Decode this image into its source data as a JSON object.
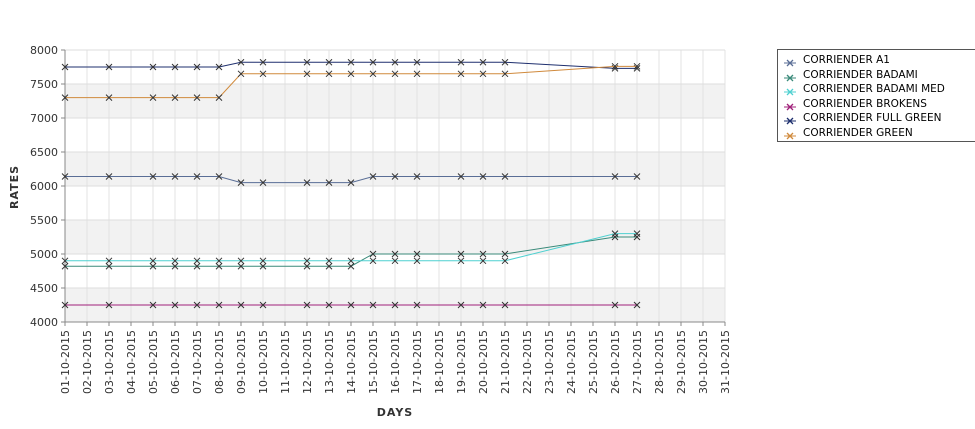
{
  "chart_data": {
    "type": "line",
    "xlabel": "DAYS",
    "ylabel": "RATES",
    "ylim": [
      4000,
      8000
    ],
    "y_ticks": [
      "4000",
      "4500",
      "5000",
      "5500",
      "6000",
      "6500",
      "7000",
      "7500",
      "8000"
    ],
    "x_ticks": [
      "01-10-2015",
      "02-10-2015",
      "03-10-2015",
      "04-10-2015",
      "05-10-2015",
      "06-10-2015",
      "07-10-2015",
      "08-10-2015",
      "09-10-2015",
      "10-10-2015",
      "11-10-2015",
      "12-10-2015",
      "13-10-2015",
      "14-10-2015",
      "15-10-2015",
      "16-10-2015",
      "17-10-2015",
      "18-10-2015",
      "19-10-2015",
      "20-10-2015",
      "21-10-2015",
      "22-10-2015",
      "23-10-2015",
      "24-10-2015",
      "25-10-2015",
      "26-10-2015",
      "27-10-2015",
      "28-10-2015",
      "29-10-2015",
      "30-10-2015",
      "31-10-2015"
    ],
    "dates": [
      "01-10-2015",
      "03-10-2015",
      "05-10-2015",
      "06-10-2015",
      "07-10-2015",
      "08-10-2015",
      "09-10-2015",
      "10-10-2015",
      "12-10-2015",
      "13-10-2015",
      "14-10-2015",
      "15-10-2015",
      "16-10-2015",
      "17-10-2015",
      "19-10-2015",
      "20-10-2015",
      "21-10-2015",
      "26-10-2015",
      "27-10-2015"
    ],
    "grid": true,
    "legend_position": "right",
    "series": [
      {
        "name": "CORRIENDER A1",
        "color": "#5a6e96",
        "values": [
          6140,
          6140,
          6140,
          6140,
          6140,
          6140,
          6050,
          6050,
          6050,
          6050,
          6050,
          6140,
          6140,
          6140,
          6140,
          6140,
          6140,
          6140,
          6140
        ]
      },
      {
        "name": "CORRIENDER BADAMI",
        "color": "#3a8a7a",
        "values": [
          4820,
          4820,
          4820,
          4820,
          4820,
          4820,
          4820,
          4820,
          4820,
          4820,
          4820,
          5000,
          5000,
          5000,
          5000,
          5000,
          5000,
          5250,
          5250
        ]
      },
      {
        "name": "CORRIENDER BADAMI MED",
        "color": "#4fd0d0",
        "values": [
          4900,
          4900,
          4900,
          4900,
          4900,
          4900,
          4900,
          4900,
          4900,
          4900,
          4900,
          4900,
          4900,
          4900,
          4900,
          4900,
          4900,
          5300,
          5300
        ]
      },
      {
        "name": "CORRIENDER BROKENS",
        "color": "#a0207a",
        "values": [
          4250,
          4250,
          4250,
          4250,
          4250,
          4250,
          4250,
          4250,
          4250,
          4250,
          4250,
          4250,
          4250,
          4250,
          4250,
          4250,
          4250,
          4250,
          4250
        ]
      },
      {
        "name": "CORRIENDER FULL GREEN",
        "color": "#1e2f6e",
        "values": [
          7750,
          7750,
          7750,
          7750,
          7750,
          7750,
          7820,
          7820,
          7820,
          7820,
          7820,
          7820,
          7820,
          7820,
          7820,
          7820,
          7820,
          7730,
          7730
        ]
      },
      {
        "name": "CORRIENDER GREEN",
        "color": "#d08a3c",
        "values": [
          7300,
          7300,
          7300,
          7300,
          7300,
          7300,
          7650,
          7650,
          7650,
          7650,
          7650,
          7650,
          7650,
          7650,
          7650,
          7650,
          7650,
          7760,
          7760
        ]
      }
    ]
  }
}
